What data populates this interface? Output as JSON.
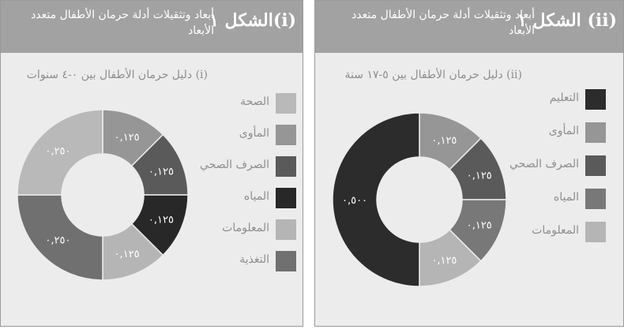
{
  "colors": {
    "health": "#b9b9b9",
    "shelter": "#969696",
    "sanitation": "#5a5a5a",
    "water": "#282828",
    "information": "#b5b5b5",
    "nutrition": "#707070",
    "education": "#2c2c2c",
    "water_right": "#787878"
  },
  "panels": [
    {
      "fig_label": "الشكل ١(i)",
      "fig_title": "أبعاد وتثقيلات أدلة حرمان الأطفال متعدد الأبعاد",
      "subtitle": "(i) دليل حرمان الأطفال بين ٠-٤ سنوات",
      "legend": [
        {
          "label": "الصحة",
          "color_key": "health"
        },
        {
          "label": "المأوى",
          "color_key": "shelter"
        },
        {
          "label": "الصرف الصحي",
          "color_key": "sanitation"
        },
        {
          "label": "المياه",
          "color_key": "water"
        },
        {
          "label": "المعلومات",
          "color_key": "information"
        },
        {
          "label": "التغذية",
          "color_key": "nutrition"
        }
      ]
    },
    {
      "fig_label": "الشكل ١ (ii)",
      "fig_title": "أبعاد وتثقيلات أدلة حرمان الأطفال متعدد الأبعاد",
      "subtitle": "(ii) دليل حرمان الأطفال بين ٥-١٧ سنة",
      "legend": [
        {
          "label": "التعليم",
          "color_key": "education"
        },
        {
          "label": "المأوى",
          "color_key": "shelter"
        },
        {
          "label": "الصرف الصحي",
          "color_key": "sanitation"
        },
        {
          "label": "المياه",
          "color_key": "water_right"
        },
        {
          "label": "المعلومات",
          "color_key": "information"
        }
      ]
    }
  ],
  "chart_data": [
    {
      "type": "pie",
      "title": "(i) دليل حرمان الأطفال بين ٠-٤ سنوات",
      "slices": [
        {
          "name": "المأوى",
          "value": 0.125,
          "label": "٠,١٢٥",
          "color_key": "shelter"
        },
        {
          "name": "الصرف الصحي",
          "value": 0.125,
          "label": "٠,١٢٥",
          "color_key": "sanitation"
        },
        {
          "name": "المياه",
          "value": 0.125,
          "label": "٠,١٢٥",
          "color_key": "water"
        },
        {
          "name": "المعلومات",
          "value": 0.125,
          "label": "٠,١٢٥",
          "color_key": "information"
        },
        {
          "name": "التغذية",
          "value": 0.25,
          "label": "٠,٢٥٠",
          "color_key": "nutrition"
        },
        {
          "name": "الصحة",
          "value": 0.25,
          "label": "٠,٢٥٠",
          "color_key": "health"
        }
      ],
      "legend": "right"
    },
    {
      "type": "pie",
      "title": "(ii) دليل حرمان الأطفال بين ٥-١٧ سنة",
      "slices": [
        {
          "name": "المأوى",
          "value": 0.125,
          "label": "٠,١٢٥",
          "color_key": "shelter"
        },
        {
          "name": "الصرف الصحي",
          "value": 0.125,
          "label": "٠,١٢٥",
          "color_key": "sanitation"
        },
        {
          "name": "المياه",
          "value": 0.125,
          "label": "٠,١٢٥",
          "color_key": "water_right"
        },
        {
          "name": "المعلومات",
          "value": 0.125,
          "label": "٠,١٢٥",
          "color_key": "information"
        },
        {
          "name": "التعليم",
          "value": 0.5,
          "label": "٠,٥٠٠",
          "color_key": "education"
        }
      ],
      "legend": "right"
    }
  ]
}
